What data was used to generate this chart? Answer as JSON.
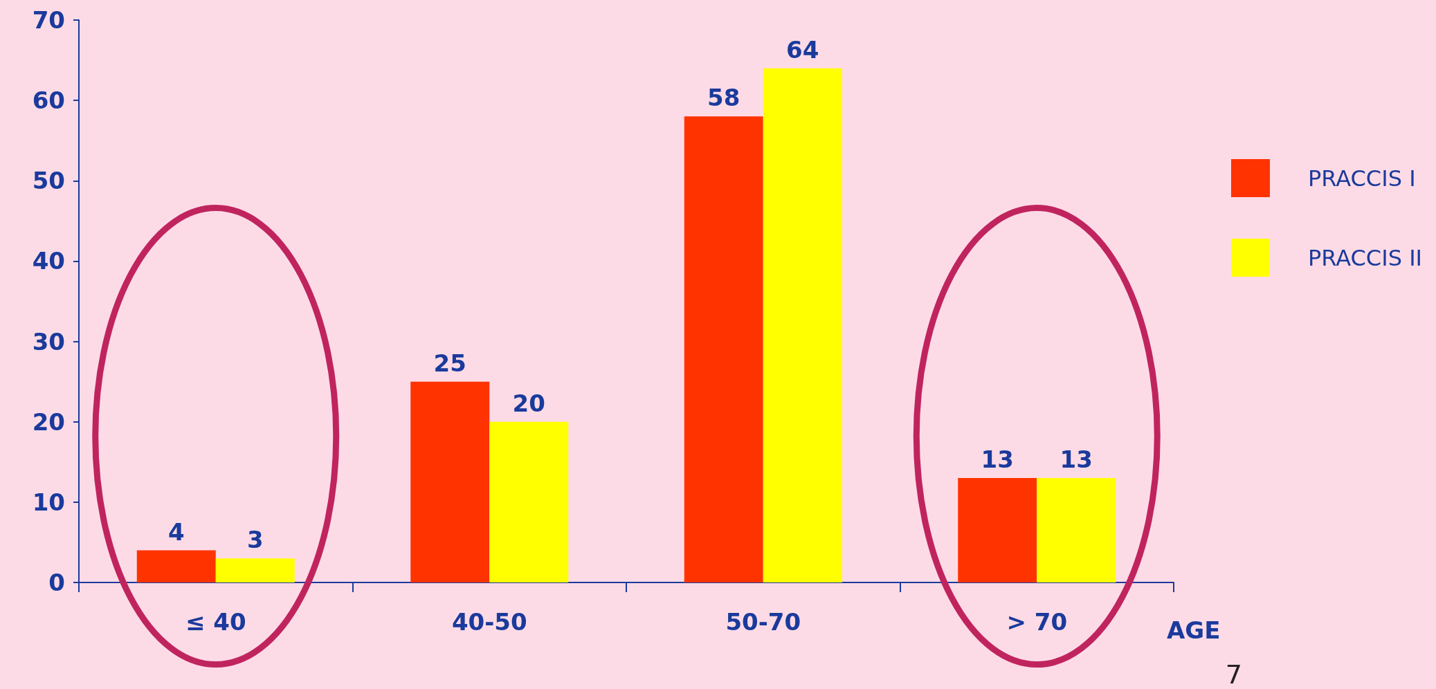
{
  "chart_data": {
    "type": "bar",
    "xlabel": "AGE",
    "categories": [
      "≤ 40",
      "40-50",
      "50-70",
      "> 70"
    ],
    "series": [
      {
        "name": "PRACCIS I",
        "color": "#ff3300",
        "values": [
          4,
          25,
          58,
          13
        ]
      },
      {
        "name": "PRACCIS II",
        "color": "#ffff00",
        "values": [
          3,
          20,
          64,
          13
        ]
      }
    ],
    "ylim": [
      0,
      70
    ],
    "yticks": [
      0,
      10,
      20,
      30,
      40,
      50,
      60,
      70
    ],
    "grid": false,
    "legend": "right",
    "data_labels": true,
    "annotations": [
      "7"
    ]
  }
}
